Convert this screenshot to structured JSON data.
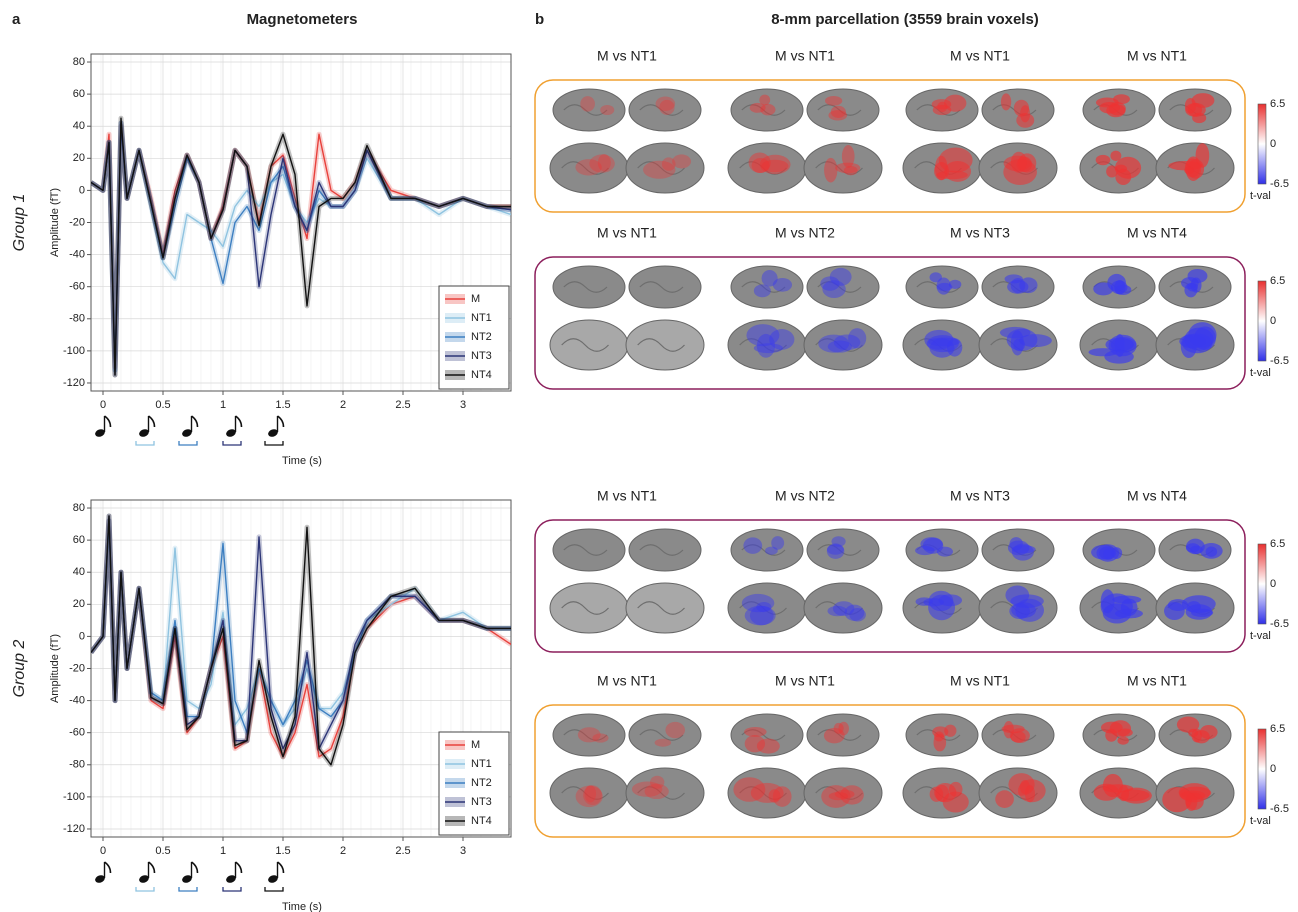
{
  "panel_a": {
    "label": "a",
    "title": "Magnetometers"
  },
  "panel_b": {
    "label": "b",
    "title": "8-mm parcellation (3559 brain voxels)",
    "rows": [
      {
        "titles": [
          "M vs NT1",
          "M vs NT1",
          "M vs NT1",
          "M vs NT1"
        ],
        "frame_color": "#f0a030",
        "blob_color": "#ee3333"
      },
      {
        "titles": [
          "M vs NT1",
          "M vs NT2",
          "M vs NT3",
          "M vs NT4"
        ],
        "frame_color": "#8c1f5c",
        "blob_color": "#3a3aee"
      },
      {
        "titles": [
          "M vs NT1",
          "M vs NT2",
          "M vs NT3",
          "M vs NT4"
        ],
        "frame_color": "#8c1f5c",
        "blob_color": "#3a3aee"
      },
      {
        "titles": [
          "M vs NT1",
          "M vs NT1",
          "M vs NT1",
          "M vs NT1"
        ],
        "frame_color": "#f0a030",
        "blob_color": "#ee3333"
      }
    ],
    "colorbar": {
      "ticks": [
        6.5,
        0,
        -6.5
      ],
      "label": "t-val"
    }
  },
  "chart_data": [
    {
      "type": "line",
      "group_label": "Group 1",
      "xlabel": "Time (s)",
      "ylabel": "Amplitude (fT)",
      "x": [
        -0.1,
        0,
        0.05,
        0.1,
        0.15,
        0.2,
        0.3,
        0.4,
        0.5,
        0.6,
        0.7,
        0.8,
        0.9,
        1.0,
        1.1,
        1.2,
        1.3,
        1.4,
        1.5,
        1.6,
        1.7,
        1.8,
        1.9,
        2.0,
        2.1,
        2.2,
        2.4,
        2.6,
        2.8,
        3.0,
        3.2,
        3.4
      ],
      "series": [
        {
          "name": "M",
          "color": "#e8413c",
          "values": [
            5,
            0,
            35,
            -110,
            40,
            -5,
            25,
            -5,
            -40,
            0,
            22,
            5,
            -30,
            -10,
            25,
            15,
            -20,
            15,
            22,
            -5,
            -30,
            35,
            0,
            -5,
            5,
            25,
            0,
            -5,
            -10,
            -5,
            -10,
            -10
          ]
        },
        {
          "name": "NT1",
          "color": "#8fc3e0",
          "values": [
            5,
            0,
            30,
            -112,
            40,
            -5,
            25,
            -10,
            -45,
            -55,
            -15,
            -20,
            -25,
            -35,
            -10,
            0,
            -10,
            5,
            10,
            -10,
            -20,
            -5,
            -10,
            -10,
            0,
            20,
            -5,
            -5,
            -15,
            -5,
            -10,
            -15
          ]
        },
        {
          "name": "NT2",
          "color": "#3d7fc1",
          "values": [
            5,
            0,
            30,
            -112,
            42,
            -5,
            25,
            -8,
            -42,
            -10,
            20,
            5,
            -30,
            -58,
            -20,
            -10,
            -25,
            5,
            15,
            -10,
            -25,
            0,
            -10,
            -10,
            0,
            25,
            -5,
            -5,
            -10,
            -5,
            -10,
            -12
          ]
        },
        {
          "name": "NT3",
          "color": "#2c3577",
          "values": [
            5,
            0,
            30,
            -115,
            42,
            -5,
            25,
            -8,
            -42,
            -5,
            22,
            5,
            -30,
            -12,
            25,
            15,
            -60,
            -15,
            20,
            -10,
            -25,
            5,
            -10,
            -10,
            0,
            25,
            -5,
            -5,
            -10,
            -5,
            -10,
            -12
          ]
        },
        {
          "name": "NT4",
          "color": "#111111",
          "values": [
            5,
            0,
            30,
            -115,
            45,
            -5,
            25,
            -8,
            -42,
            -5,
            22,
            5,
            -30,
            -12,
            25,
            15,
            -22,
            15,
            35,
            10,
            -72,
            -10,
            -5,
            -5,
            5,
            28,
            -5,
            -5,
            -10,
            -5,
            -10,
            -10
          ]
        }
      ],
      "xlim": [
        -0.1,
        3.4
      ],
      "ylim": [
        -125,
        85
      ],
      "xticks": [
        0,
        0.5,
        1,
        1.5,
        2,
        2.5,
        3
      ],
      "yticks": [
        -120,
        -100,
        -80,
        -60,
        -40,
        -20,
        0,
        20,
        40,
        60,
        80
      ],
      "grid": true,
      "legend": "lower right"
    },
    {
      "type": "line",
      "group_label": "Group 2",
      "xlabel": "Time (s)",
      "ylabel": "Amplitude (fT)",
      "x": [
        -0.1,
        0,
        0.05,
        0.1,
        0.15,
        0.2,
        0.3,
        0.4,
        0.5,
        0.6,
        0.7,
        0.8,
        0.9,
        1.0,
        1.1,
        1.2,
        1.3,
        1.4,
        1.5,
        1.6,
        1.7,
        1.8,
        1.9,
        2.0,
        2.1,
        2.2,
        2.4,
        2.6,
        2.8,
        3.0,
        3.2,
        3.4
      ],
      "series": [
        {
          "name": "M",
          "color": "#e8413c",
          "values": [
            -10,
            0,
            72,
            -40,
            40,
            -20,
            30,
            -40,
            -45,
            0,
            -60,
            -50,
            -20,
            0,
            -70,
            -65,
            -20,
            -60,
            -75,
            -60,
            -30,
            -75,
            -70,
            -50,
            -10,
            5,
            20,
            25,
            10,
            10,
            5,
            -5
          ]
        },
        {
          "name": "NT1",
          "color": "#8fc3e0",
          "values": [
            -10,
            0,
            72,
            -40,
            40,
            -20,
            30,
            -35,
            -40,
            55,
            -40,
            -45,
            -30,
            15,
            -55,
            -45,
            -20,
            -40,
            -55,
            -45,
            -20,
            -45,
            -45,
            -35,
            -10,
            10,
            20,
            30,
            10,
            15,
            5,
            5
          ]
        },
        {
          "name": "NT2",
          "color": "#3d7fc1",
          "values": [
            -10,
            0,
            72,
            -40,
            40,
            -20,
            30,
            -35,
            -40,
            10,
            -50,
            -50,
            -20,
            58,
            -40,
            -60,
            -20,
            -40,
            -55,
            -40,
            -15,
            -45,
            -50,
            -40,
            -10,
            10,
            25,
            25,
            10,
            10,
            5,
            5
          ]
        },
        {
          "name": "NT3",
          "color": "#2c3577",
          "values": [
            -10,
            0,
            75,
            -40,
            40,
            -20,
            30,
            -38,
            -42,
            5,
            -55,
            -50,
            -20,
            10,
            -65,
            -65,
            62,
            -45,
            -70,
            -55,
            -10,
            -70,
            -55,
            -40,
            -5,
            10,
            25,
            25,
            10,
            10,
            5,
            5
          ]
        },
        {
          "name": "NT4",
          "color": "#111111",
          "values": [
            -10,
            0,
            75,
            -40,
            40,
            -20,
            30,
            -38,
            -42,
            5,
            -58,
            -50,
            -20,
            5,
            -68,
            -65,
            -15,
            -50,
            -75,
            -50,
            68,
            -70,
            -80,
            -55,
            -10,
            5,
            25,
            30,
            10,
            10,
            5,
            5
          ]
        }
      ],
      "xlim": [
        -0.1,
        3.4
      ],
      "ylim": [
        -125,
        85
      ],
      "xticks": [
        0,
        0.5,
        1,
        1.5,
        2,
        2.5,
        3
      ],
      "yticks": [
        -120,
        -100,
        -80,
        -60,
        -40,
        -20,
        0,
        20,
        40,
        60,
        80
      ],
      "grid": true,
      "legend": "lower right"
    }
  ]
}
